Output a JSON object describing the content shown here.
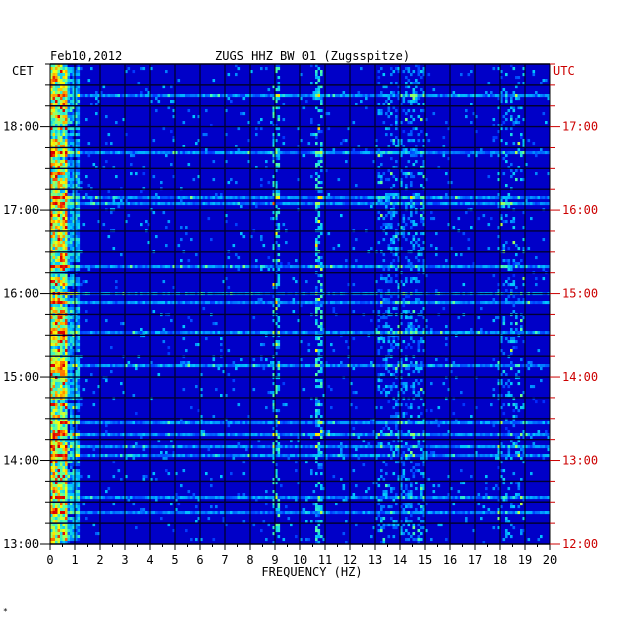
{
  "chart_data": {
    "type": "heatmap",
    "date": "Feb10,2012",
    "title": "ZUGS HHZ BW 01 (Zugsspitze)",
    "left_tz": "CET",
    "right_tz": "UTC",
    "xlabel": "FREQUENCY (HZ)",
    "xlim": [
      0,
      20
    ],
    "x_ticks": [
      "0",
      "1",
      "2",
      "3",
      "4",
      "5",
      "6",
      "7",
      "8",
      "9",
      "10",
      "11",
      "12",
      "13",
      "14",
      "15",
      "16",
      "17",
      "18",
      "19",
      "20"
    ],
    "y_ticks_left": [
      "13:00",
      "14:00",
      "15:00",
      "16:00",
      "17:00",
      "18:00"
    ],
    "y_ticks_right": [
      "12:00",
      "13:00",
      "14:00",
      "15:00",
      "16:00",
      "17:00"
    ],
    "time_range_cet": [
      "13:00",
      "18:45"
    ],
    "footnote": "*"
  },
  "colors": {
    "background": "#0000c8",
    "left_axis": "#000000",
    "right_axis": "#cc0000"
  }
}
